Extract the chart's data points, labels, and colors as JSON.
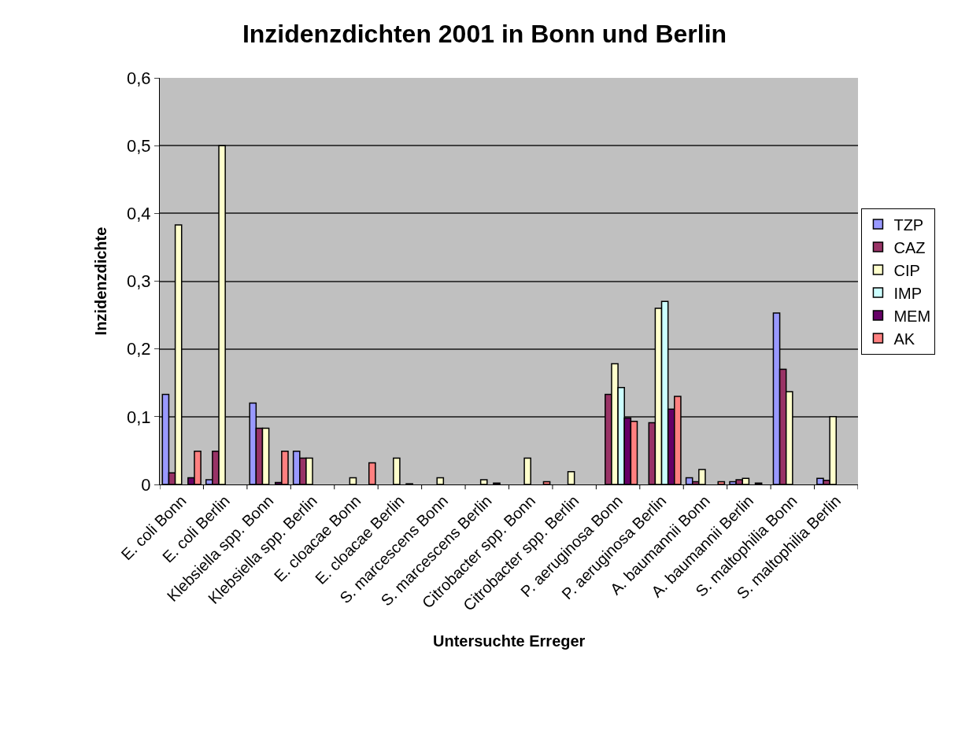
{
  "chart_data": {
    "type": "bar",
    "title": "Inzidenzdichten 2001 in Bonn und Berlin",
    "xlabel": "Untersuchte Erreger",
    "ylabel": "Inzidenzdichte",
    "categories": [
      "E. coli Bonn",
      "E. coli Berlin",
      "Klebsiella spp. Bonn",
      "Klebsiella spp. Berlin",
      "E. cloacae Bonn",
      "E. cloacae Berlin",
      "S. marcescens Bonn",
      "S. marcescens Berlin",
      "Citrobacter spp. Bonn",
      "Citrobacter spp. Berlin",
      "P. aeruginosa Bonn",
      "P. aeruginosa Berlin",
      "A. baumannii Bonn",
      "A. baumannii Berlin",
      "S. maltophilia Bonn",
      "S. maltophilia Berlin"
    ],
    "series": [
      {
        "name": "TZP",
        "color": "#9999ff",
        "values": [
          0.133,
          0.007,
          0.12,
          0.049,
          null,
          null,
          null,
          null,
          null,
          null,
          null,
          null,
          0.01,
          0.004,
          0.253,
          0.009
        ]
      },
      {
        "name": "CAZ",
        "color": "#993366",
        "values": [
          0.017,
          0.049,
          0.083,
          0.039,
          null,
          null,
          null,
          null,
          null,
          null,
          0.133,
          0.091,
          0.004,
          0.007,
          0.17,
          0.006
        ]
      },
      {
        "name": "CIP",
        "color": "#ffffcc",
        "values": [
          0.383,
          0.5,
          0.083,
          0.039,
          0.01,
          0.039,
          0.01,
          0.007,
          0.039,
          0.019,
          0.178,
          0.26,
          0.022,
          0.009,
          0.137,
          0.1
        ]
      },
      {
        "name": "IMP",
        "color": "#ccffff",
        "values": [
          null,
          null,
          null,
          null,
          null,
          null,
          null,
          null,
          null,
          null,
          0.143,
          0.27,
          null,
          null,
          null,
          null
        ]
      },
      {
        "name": "MEM",
        "color": "#660066",
        "values": [
          0.01,
          null,
          0.003,
          null,
          null,
          0.001,
          null,
          0.002,
          null,
          null,
          0.098,
          0.111,
          null,
          0.002,
          null,
          null
        ]
      },
      {
        "name": "AK",
        "color": "#ff8080",
        "values": [
          0.049,
          null,
          0.049,
          null,
          0.032,
          null,
          null,
          null,
          0.004,
          null,
          0.093,
          0.13,
          0.004,
          null,
          null,
          null
        ]
      }
    ],
    "ylim": [
      0,
      0.6
    ],
    "yticks": [
      {
        "value": 0,
        "label": "0"
      },
      {
        "value": 0.1,
        "label": "0,1"
      },
      {
        "value": 0.2,
        "label": "0,2"
      },
      {
        "value": 0.3,
        "label": "0,3"
      },
      {
        "value": 0.4,
        "label": "0,4"
      },
      {
        "value": 0.5,
        "label": "0,5"
      },
      {
        "value": 0.6,
        "label": "0,6"
      }
    ],
    "grid": "y",
    "legend": "right"
  }
}
